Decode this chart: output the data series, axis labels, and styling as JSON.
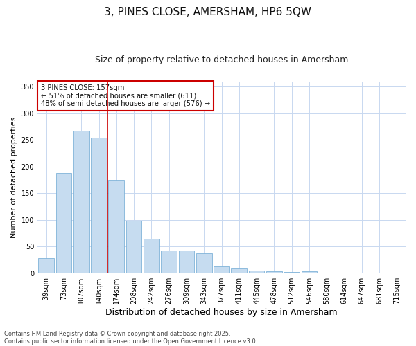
{
  "title": "3, PINES CLOSE, AMERSHAM, HP6 5QW",
  "subtitle": "Size of property relative to detached houses in Amersham",
  "xlabel": "Distribution of detached houses by size in Amersham",
  "ylabel": "Number of detached properties",
  "categories": [
    "39sqm",
    "73sqm",
    "107sqm",
    "140sqm",
    "174sqm",
    "208sqm",
    "242sqm",
    "276sqm",
    "309sqm",
    "343sqm",
    "377sqm",
    "411sqm",
    "445sqm",
    "478sqm",
    "512sqm",
    "546sqm",
    "580sqm",
    "614sqm",
    "647sqm",
    "681sqm",
    "715sqm"
  ],
  "values": [
    28,
    188,
    268,
    255,
    175,
    99,
    65,
    42,
    42,
    37,
    13,
    9,
    5,
    3,
    2,
    4,
    1,
    1,
    1,
    1,
    1
  ],
  "bar_color": "#c6dcf0",
  "bar_edge_color": "#7fb3d8",
  "vline_x_index": 3.5,
  "vline_color": "#cc0000",
  "annotation_text": "3 PINES CLOSE: 157sqm\n← 51% of detached houses are smaller (611)\n48% of semi-detached houses are larger (576) →",
  "annotation_box_color": "#ffffff",
  "annotation_box_edge": "#cc0000",
  "ylim": [
    0,
    360
  ],
  "yticks": [
    0,
    50,
    100,
    150,
    200,
    250,
    300,
    350
  ],
  "footer_line1": "Contains HM Land Registry data © Crown copyright and database right 2025.",
  "footer_line2": "Contains public sector information licensed under the Open Government Licence v3.0.",
  "bg_color": "#ffffff",
  "plot_bg_color": "#ffffff",
  "title_fontsize": 11,
  "subtitle_fontsize": 9,
  "tick_fontsize": 7,
  "ylabel_fontsize": 8,
  "xlabel_fontsize": 9
}
